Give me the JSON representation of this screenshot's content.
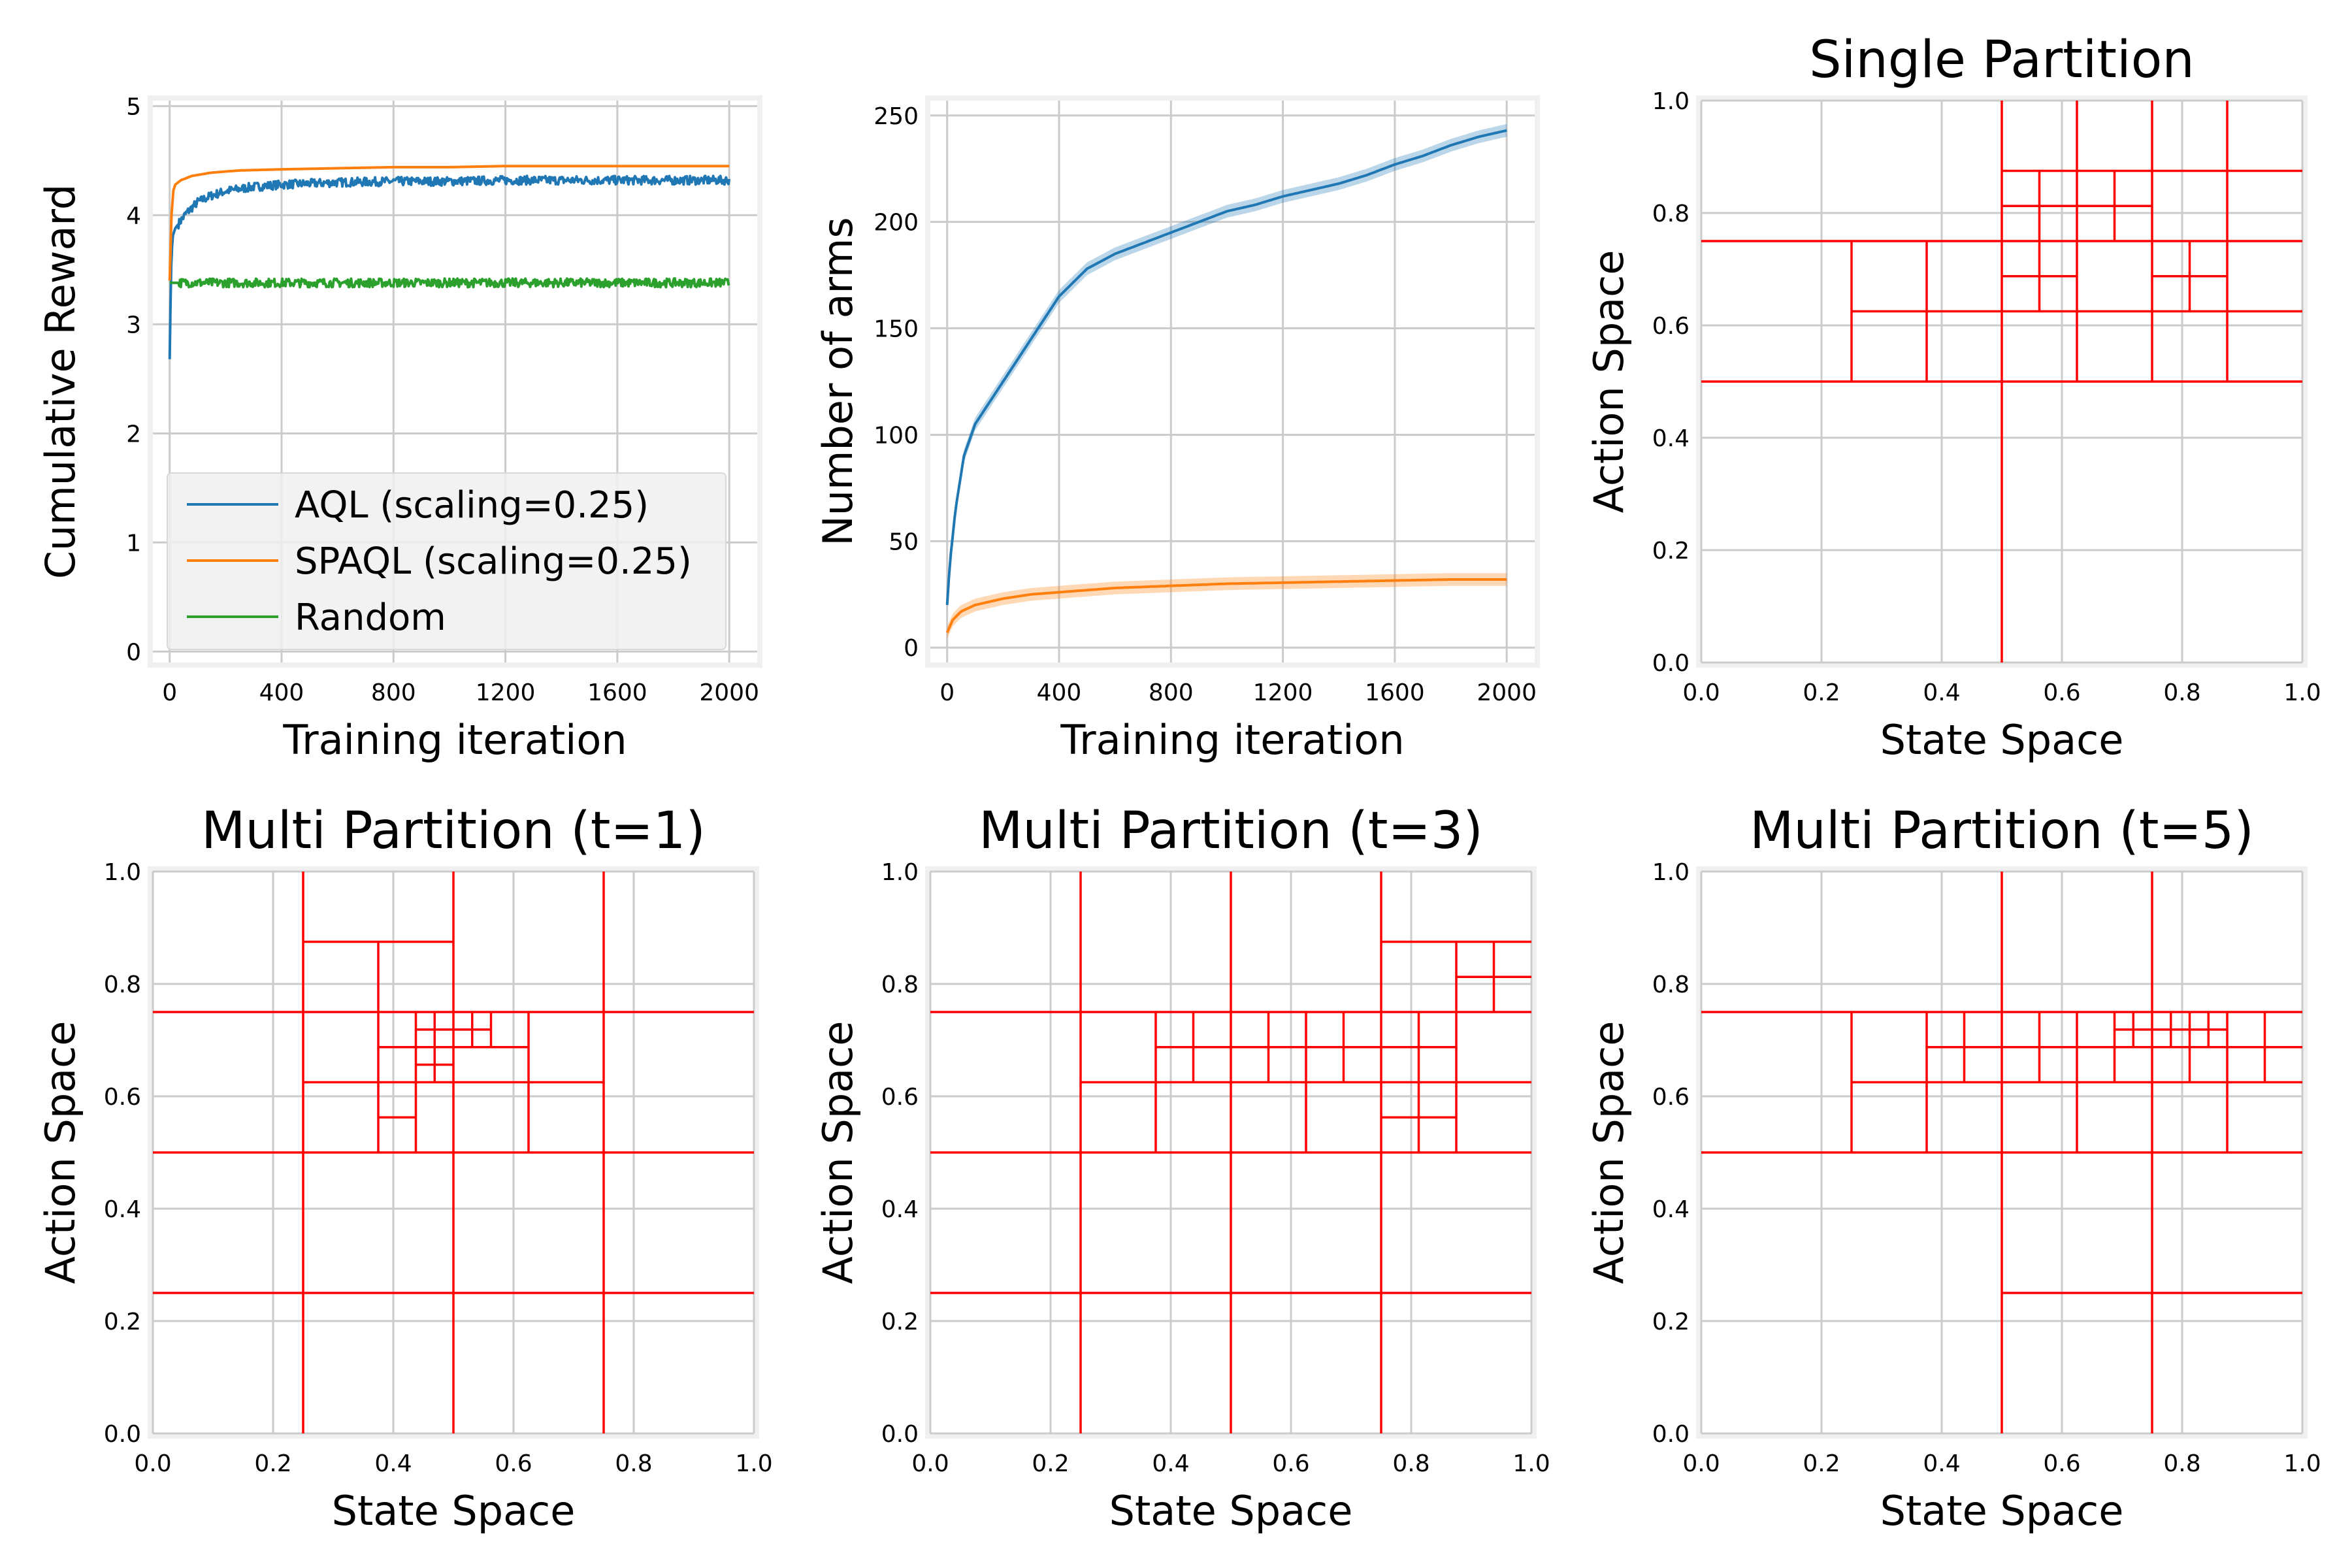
{
  "colors": {
    "aql": "#1f77b4",
    "spaql": "#ff7f0e",
    "random": "#2ca02c",
    "partition": "#ff0000",
    "grid": "#cbcbcb",
    "axes_bg": "#ffffff",
    "frame": "#f0f0f0"
  },
  "chart_data": [
    {
      "type": "line",
      "title": "",
      "xlabel": "Training iteration",
      "ylabel": "Cumulative Reward",
      "xlim": [
        -60,
        2100
      ],
      "ylim": [
        -0.1,
        5.05
      ],
      "xticks": [
        0,
        400,
        800,
        1200,
        1600,
        2000
      ],
      "yticks": [
        0,
        1,
        2,
        3,
        4,
        5
      ],
      "grid": true,
      "legend": {
        "placement": "lower-left",
        "entries": [
          "AQL (scaling=0.25)",
          "SPAQL (scaling=0.25)",
          "Random"
        ]
      },
      "series": [
        {
          "name": "AQL (scaling=0.25)",
          "color_key": "aql",
          "noise": 0.04,
          "x": [
            0,
            5,
            10,
            20,
            40,
            60,
            100,
            150,
            200,
            300,
            400,
            600,
            800,
            1000,
            1200,
            1400,
            1600,
            1800,
            2000
          ],
          "y": [
            2.68,
            3.5,
            3.8,
            3.88,
            3.95,
            4.02,
            4.12,
            4.18,
            4.22,
            4.26,
            4.28,
            4.3,
            4.31,
            4.31,
            4.32,
            4.32,
            4.32,
            4.32,
            4.32
          ]
        },
        {
          "name": "SPAQL (scaling=0.25)",
          "color_key": "spaql",
          "noise": 0.0,
          "x": [
            0,
            5,
            10,
            20,
            40,
            80,
            150,
            250,
            400,
            600,
            800,
            1000,
            1200,
            1600,
            2000
          ],
          "y": [
            3.4,
            3.9,
            4.2,
            4.28,
            4.32,
            4.36,
            4.39,
            4.41,
            4.42,
            4.43,
            4.44,
            4.44,
            4.45,
            4.45,
            4.45
          ]
        },
        {
          "name": "Random",
          "color_key": "random",
          "noise": 0.04,
          "x": [
            0,
            2000
          ],
          "y": [
            3.38,
            3.38
          ]
        }
      ]
    },
    {
      "type": "line",
      "title": "",
      "xlabel": "Training iteration",
      "ylabel": "Number of arms",
      "xlim": [
        -60,
        2100
      ],
      "ylim": [
        -7,
        257
      ],
      "xticks": [
        0,
        400,
        800,
        1200,
        1600,
        2000
      ],
      "yticks": [
        0,
        50,
        100,
        150,
        200,
        250
      ],
      "grid": true,
      "legend": null,
      "series": [
        {
          "color_key": "aql",
          "band": 3,
          "x": [
            0,
            10,
            30,
            60,
            100,
            150,
            200,
            300,
            400,
            500,
            600,
            700,
            800,
            900,
            1000,
            1100,
            1200,
            1300,
            1400,
            1500,
            1600,
            1700,
            1800,
            1900,
            2000
          ],
          "y": [
            20,
            40,
            65,
            90,
            105,
            115,
            125,
            145,
            165,
            178,
            185,
            190,
            195,
            200,
            205,
            208,
            212,
            215,
            218,
            222,
            227,
            231,
            236,
            240,
            243
          ]
        },
        {
          "color_key": "spaql",
          "band": 3,
          "x": [
            0,
            20,
            50,
            100,
            200,
            300,
            400,
            600,
            800,
            1000,
            1200,
            1400,
            1600,
            1800,
            2000
          ],
          "y": [
            7,
            13,
            17,
            20,
            23,
            25,
            26,
            28,
            29,
            30,
            30.5,
            31,
            31.5,
            32,
            32
          ]
        }
      ]
    },
    {
      "type": "partition",
      "title": "Single Partition",
      "xlabel": "State Space",
      "ylabel": "Action Space",
      "xlim": [
        0,
        1
      ],
      "ylim": [
        0,
        1
      ],
      "xticks": [
        0.0,
        0.2,
        0.4,
        0.6,
        0.8,
        1.0
      ],
      "yticks": [
        0.0,
        0.2,
        0.4,
        0.6,
        0.8,
        1.0
      ],
      "grid": true,
      "hlines": [
        [
          0,
          1,
          0.5
        ],
        [
          0,
          1,
          0.75
        ],
        [
          0.25,
          1,
          0.625
        ],
        [
          0.5,
          1,
          0.875
        ],
        [
          0.5,
          0.625,
          0.6875
        ],
        [
          0.5,
          0.75,
          0.8125
        ],
        [
          0.75,
          0.875,
          0.6875
        ]
      ],
      "vlines": [
        [
          0.5,
          0,
          1
        ],
        [
          0.25,
          0.5,
          0.75
        ],
        [
          0.375,
          0.5,
          0.75
        ],
        [
          0.625,
          0.5,
          1
        ],
        [
          0.75,
          0.5,
          1
        ],
        [
          0.875,
          0.5,
          1
        ],
        [
          0.5625,
          0.625,
          0.875
        ],
        [
          0.6875,
          0.75,
          0.875
        ],
        [
          0.8125,
          0.625,
          0.75
        ]
      ]
    },
    {
      "type": "partition",
      "title": "Multi Partition (t=1)",
      "xlabel": "State Space",
      "ylabel": "Action Space",
      "xlim": [
        0,
        1
      ],
      "ylim": [
        0,
        1
      ],
      "xticks": [
        0.0,
        0.2,
        0.4,
        0.6,
        0.8,
        1.0
      ],
      "yticks": [
        0.0,
        0.2,
        0.4,
        0.6,
        0.8,
        1.0
      ],
      "grid": true,
      "hlines": [
        [
          0,
          1,
          0.25
        ],
        [
          0,
          1,
          0.5
        ],
        [
          0,
          1,
          0.75
        ],
        [
          0.25,
          0.75,
          0.625
        ],
        [
          0.25,
          0.5,
          0.875
        ],
        [
          0.375,
          0.625,
          0.6875
        ],
        [
          0.375,
          0.4375,
          0.5625
        ],
        [
          0.4375,
          0.5625,
          0.71875
        ],
        [
          0.4375,
          0.5,
          0.65625
        ]
      ],
      "vlines": [
        [
          0.25,
          0,
          1
        ],
        [
          0.5,
          0,
          1
        ],
        [
          0.75,
          0,
          1
        ],
        [
          0.375,
          0.5,
          0.875
        ],
        [
          0.625,
          0.5,
          0.75
        ],
        [
          0.4375,
          0.5,
          0.75
        ],
        [
          0.5625,
          0.6875,
          0.75
        ],
        [
          0.46875,
          0.625,
          0.75
        ],
        [
          0.53125,
          0.6875,
          0.75
        ]
      ]
    },
    {
      "type": "partition",
      "title": "Multi Partition (t=3)",
      "xlabel": "State Space",
      "ylabel": "Action Space",
      "xlim": [
        0,
        1
      ],
      "ylim": [
        0,
        1
      ],
      "xticks": [
        0.0,
        0.2,
        0.4,
        0.6,
        0.8,
        1.0
      ],
      "yticks": [
        0.0,
        0.2,
        0.4,
        0.6,
        0.8,
        1.0
      ],
      "grid": true,
      "hlines": [
        [
          0,
          1,
          0.25
        ],
        [
          0,
          1,
          0.5
        ],
        [
          0,
          1,
          0.75
        ],
        [
          0.25,
          1,
          0.625
        ],
        [
          0.375,
          0.875,
          0.6875
        ],
        [
          0.75,
          1,
          0.875
        ],
        [
          0.875,
          1,
          0.8125
        ],
        [
          0.75,
          0.875,
          0.5625
        ]
      ],
      "vlines": [
        [
          0.25,
          0,
          1
        ],
        [
          0.5,
          0,
          1
        ],
        [
          0.75,
          0,
          1
        ],
        [
          0.375,
          0.5,
          0.75
        ],
        [
          0.625,
          0.5,
          0.75
        ],
        [
          0.875,
          0.5,
          0.875
        ],
        [
          0.4375,
          0.625,
          0.75
        ],
        [
          0.5625,
          0.625,
          0.75
        ],
        [
          0.6875,
          0.625,
          0.75
        ],
        [
          0.8125,
          0.5,
          0.75
        ],
        [
          0.9375,
          0.75,
          0.875
        ]
      ]
    },
    {
      "type": "partition",
      "title": "Multi Partition (t=5)",
      "xlabel": "State Space",
      "ylabel": "Action Space",
      "xlim": [
        0,
        1
      ],
      "ylim": [
        0,
        1
      ],
      "xticks": [
        0.0,
        0.2,
        0.4,
        0.6,
        0.8,
        1.0
      ],
      "yticks": [
        0.0,
        0.2,
        0.4,
        0.6,
        0.8,
        1.0
      ],
      "grid": true,
      "hlines": [
        [
          0,
          1,
          0.5
        ],
        [
          0,
          1,
          0.75
        ],
        [
          0.5,
          1,
          0.25
        ],
        [
          0.25,
          1,
          0.625
        ],
        [
          0.375,
          1,
          0.6875
        ],
        [
          0.6875,
          0.875,
          0.71875
        ]
      ],
      "vlines": [
        [
          0.5,
          0,
          1
        ],
        [
          0.75,
          0,
          1
        ],
        [
          0.25,
          0.5,
          0.75
        ],
        [
          0.375,
          0.5,
          0.75
        ],
        [
          0.625,
          0.5,
          0.75
        ],
        [
          0.875,
          0.5,
          0.75
        ],
        [
          0.4375,
          0.625,
          0.75
        ],
        [
          0.5625,
          0.625,
          0.75
        ],
        [
          0.6875,
          0.625,
          0.75
        ],
        [
          0.8125,
          0.625,
          0.75
        ],
        [
          0.9375,
          0.625,
          0.75
        ],
        [
          0.71875,
          0.6875,
          0.75
        ],
        [
          0.78125,
          0.6875,
          0.75
        ],
        [
          0.84375,
          0.6875,
          0.75
        ]
      ]
    }
  ]
}
